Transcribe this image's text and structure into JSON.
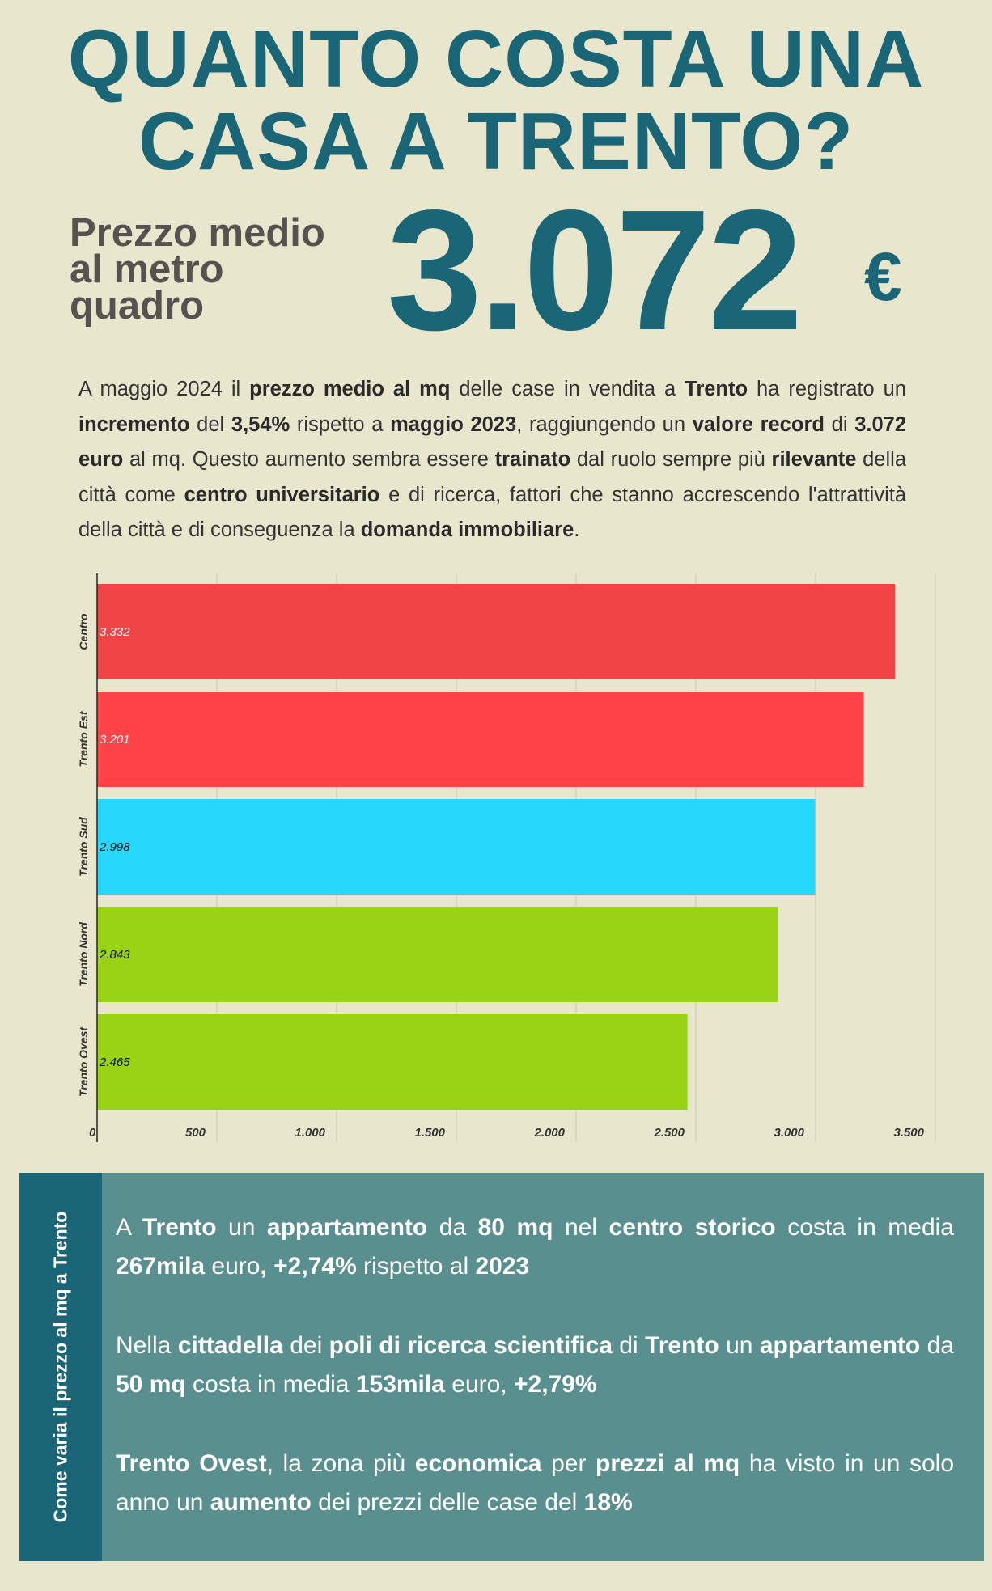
{
  "header": {
    "title_line1": "QUANTO COSTA UNA",
    "title_line2": "CASA A TRENTO?"
  },
  "price": {
    "label_line1": "Prezzo medio",
    "label_line2": "al metro",
    "label_line3": "quadro",
    "value": "3.072",
    "unit": "€"
  },
  "intro_parts": [
    {
      "t": "A maggio 2024 il ",
      "b": false
    },
    {
      "t": "prezzo medio al mq",
      "b": true
    },
    {
      "t": " delle case in vendita a ",
      "b": false
    },
    {
      "t": "Trento",
      "b": true
    },
    {
      "t": " ha registrato un ",
      "b": false
    },
    {
      "t": "incremento",
      "b": true
    },
    {
      "t": " del ",
      "b": false
    },
    {
      "t": "3,54%",
      "b": true
    },
    {
      "t": " rispetto a ",
      "b": false
    },
    {
      "t": "maggio 2023",
      "b": true
    },
    {
      "t": ", raggiungendo un ",
      "b": false
    },
    {
      "t": "valore record",
      "b": true
    },
    {
      "t": " di ",
      "b": false
    },
    {
      "t": "3.072 euro",
      "b": true
    },
    {
      "t": " al mq. Questo aumento sembra essere ",
      "b": false
    },
    {
      "t": "trainato",
      "b": true
    },
    {
      "t": " dal ruolo sempre più ",
      "b": false
    },
    {
      "t": "rilevante",
      "b": true
    },
    {
      "t": " della città come ",
      "b": false
    },
    {
      "t": "centro universitario",
      "b": true
    },
    {
      "t": " e di ricerca, fattori che stanno accrescendo l'attrattività della città e di conseguenza la ",
      "b": false
    },
    {
      "t": "domanda immobiliare",
      "b": true
    },
    {
      "t": ".",
      "b": false
    }
  ],
  "chart_data": {
    "type": "bar",
    "orientation": "horizontal",
    "categories": [
      "Centro",
      "Trento Est",
      "Trento Sud",
      "Trento Nord",
      "Trento Ovest"
    ],
    "values": [
      3332,
      3201,
      2998,
      2843,
      2465
    ],
    "value_labels": [
      "3.332",
      "3.201",
      "2.998",
      "2.843",
      "2.465"
    ],
    "bar_colors": [
      "#ef4545",
      "#ff4347",
      "#27d8fd",
      "#98d314",
      "#98d314"
    ],
    "label_colors": [
      "#ffffff",
      "#ffffff",
      "#111111",
      "#111111",
      "#111111"
    ],
    "xlim": [
      0,
      3500
    ],
    "xticks": [
      0,
      500,
      1000,
      1500,
      2000,
      2500,
      3000,
      3500
    ],
    "xtick_labels": [
      "0",
      "500",
      "1.000",
      "1.500",
      "2.000",
      "2.500",
      "3.000",
      "3.500"
    ],
    "grid": true
  },
  "panel": {
    "side_title": "Come varia il prezzo al mq a Trento",
    "paragraphs": [
      [
        {
          "t": "A ",
          "b": false
        },
        {
          "t": "Trento",
          "b": true
        },
        {
          "t": " un ",
          "b": false
        },
        {
          "t": "appartamento",
          "b": true
        },
        {
          "t": " da ",
          "b": false
        },
        {
          "t": "80 mq",
          "b": true
        },
        {
          "t": " nel ",
          "b": false
        },
        {
          "t": "centro storico",
          "b": true
        },
        {
          "t": " costa in media ",
          "b": false
        },
        {
          "t": "267mila",
          "b": true
        },
        {
          "t": " euro",
          "b": false
        },
        {
          "t": ", +2,74%",
          "b": true
        },
        {
          "t": " rispetto al ",
          "b": false
        },
        {
          "t": "2023",
          "b": true
        }
      ],
      [
        {
          "t": "Nella ",
          "b": false
        },
        {
          "t": "cittadella",
          "b": true
        },
        {
          "t": " dei ",
          "b": false
        },
        {
          "t": "poli di ricerca scientifica",
          "b": true
        },
        {
          "t": " di ",
          "b": false
        },
        {
          "t": "Trento",
          "b": true
        },
        {
          "t": " un ",
          "b": false
        },
        {
          "t": "appartamento",
          "b": true
        },
        {
          "t": " da ",
          "b": false
        },
        {
          "t": "50 mq",
          "b": true
        },
        {
          "t": " costa in media ",
          "b": false
        },
        {
          "t": "153mila",
          "b": true
        },
        {
          "t": " euro, ",
          "b": false
        },
        {
          "t": "+2,79%",
          "b": true
        }
      ],
      [
        {
          "t": "Trento Ovest",
          "b": true
        },
        {
          "t": ", la zona più ",
          "b": false
        },
        {
          "t": "economica",
          "b": true
        },
        {
          "t": " per ",
          "b": false
        },
        {
          "t": "prezzi al mq",
          "b": true
        },
        {
          "t": " ha visto in un solo anno un ",
          "b": false
        },
        {
          "t": "aumento",
          "b": true
        },
        {
          "t": " dei prezzi delle case del ",
          "b": false
        },
        {
          "t": "18%",
          "b": true
        }
      ]
    ]
  }
}
